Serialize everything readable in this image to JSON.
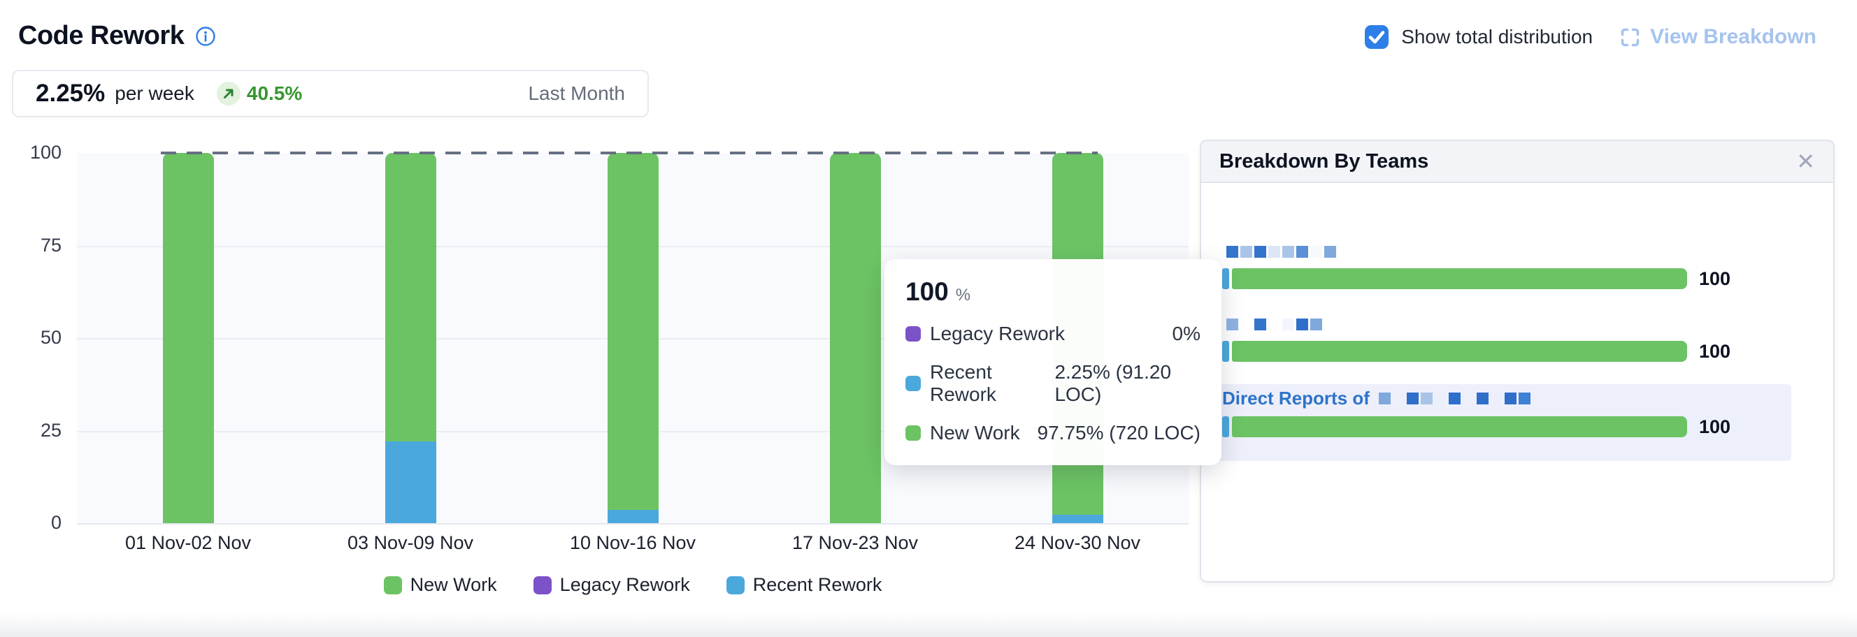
{
  "header": {
    "title": "Code Rework"
  },
  "controls": {
    "show_total_distribution": "Show total distribution",
    "checkbox_checked": true,
    "view_breakdown": "View Breakdown"
  },
  "stat": {
    "value": "2.25%",
    "unit": "per week",
    "trend": "40.5%",
    "trend_direction": "up",
    "period": "Last Month"
  },
  "colors": {
    "new_work": "#6CC364",
    "legacy_rework": "#7C52C8",
    "recent_rework": "#4BA8DD",
    "accent_blue": "#2F7EE8",
    "link_blue": "#A5C3EE",
    "trend_green": "#35972E",
    "highlight_row": "#EDEFFA"
  },
  "chart_data": {
    "type": "bar",
    "stacked": true,
    "categories": [
      "01 Nov-02 Nov",
      "03 Nov-09 Nov",
      "10 Nov-16 Nov",
      "17 Nov-23 Nov",
      "24 Nov-30 Nov"
    ],
    "series": [
      {
        "name": "New Work",
        "color": "#6CC364",
        "values": [
          100,
          78,
          96.5,
          100,
          97.75
        ]
      },
      {
        "name": "Legacy Rework",
        "color": "#7C52C8",
        "values": [
          0,
          0,
          0,
          0,
          0
        ]
      },
      {
        "name": "Recent Rework",
        "color": "#4BA8DD",
        "values": [
          0,
          22,
          3.5,
          0,
          2.25
        ]
      }
    ],
    "ylabel": "",
    "yticks": [
      0,
      25,
      50,
      75,
      100
    ],
    "ylim": [
      0,
      100
    ],
    "goal_line": 100,
    "grid": true,
    "legend_position": "bottom"
  },
  "tooltip": {
    "total": "100",
    "total_unit": "%",
    "rows": [
      {
        "label": "Legacy Rework",
        "value": "0%"
      },
      {
        "label": "Recent Rework",
        "value": "2.25% (91.20 LOC)"
      },
      {
        "label": "New Work",
        "value": "97.75% (720 LOC)"
      }
    ]
  },
  "breakdown_panel": {
    "title": "Breakdown By Teams",
    "close_glyph": "✕",
    "rows": [
      {
        "label_prefix": "",
        "value": "100",
        "recent_pct": 1.5,
        "new_pct": 98.5,
        "highlighted": false,
        "redacted": [
          "#3374cd",
          "#a9c4e8",
          "#3374cd",
          "#dce6f5",
          "#a9c4e8",
          "#5b8fd6",
          "#f7fafd",
          "#7fa8dd"
        ]
      },
      {
        "label_prefix": "",
        "value": "100",
        "recent_pct": 1.5,
        "new_pct": 98.5,
        "highlighted": false,
        "redacted": [
          "#8fb3e3",
          "",
          "#3374cd",
          "",
          "#f2f6fc",
          "#2f6fca",
          "#7fa8dd"
        ]
      },
      {
        "label_prefix": "Direct Reports of",
        "value": "100",
        "recent_pct": 1.5,
        "new_pct": 98.5,
        "highlighted": true,
        "redacted": [
          "#7fa8dd",
          "",
          "#2f6fca",
          "#a9c4e8",
          "",
          "#2f6fca",
          "",
          "#2f6fca",
          "",
          "#2f6fca",
          "#3f81d4"
        ]
      }
    ]
  }
}
